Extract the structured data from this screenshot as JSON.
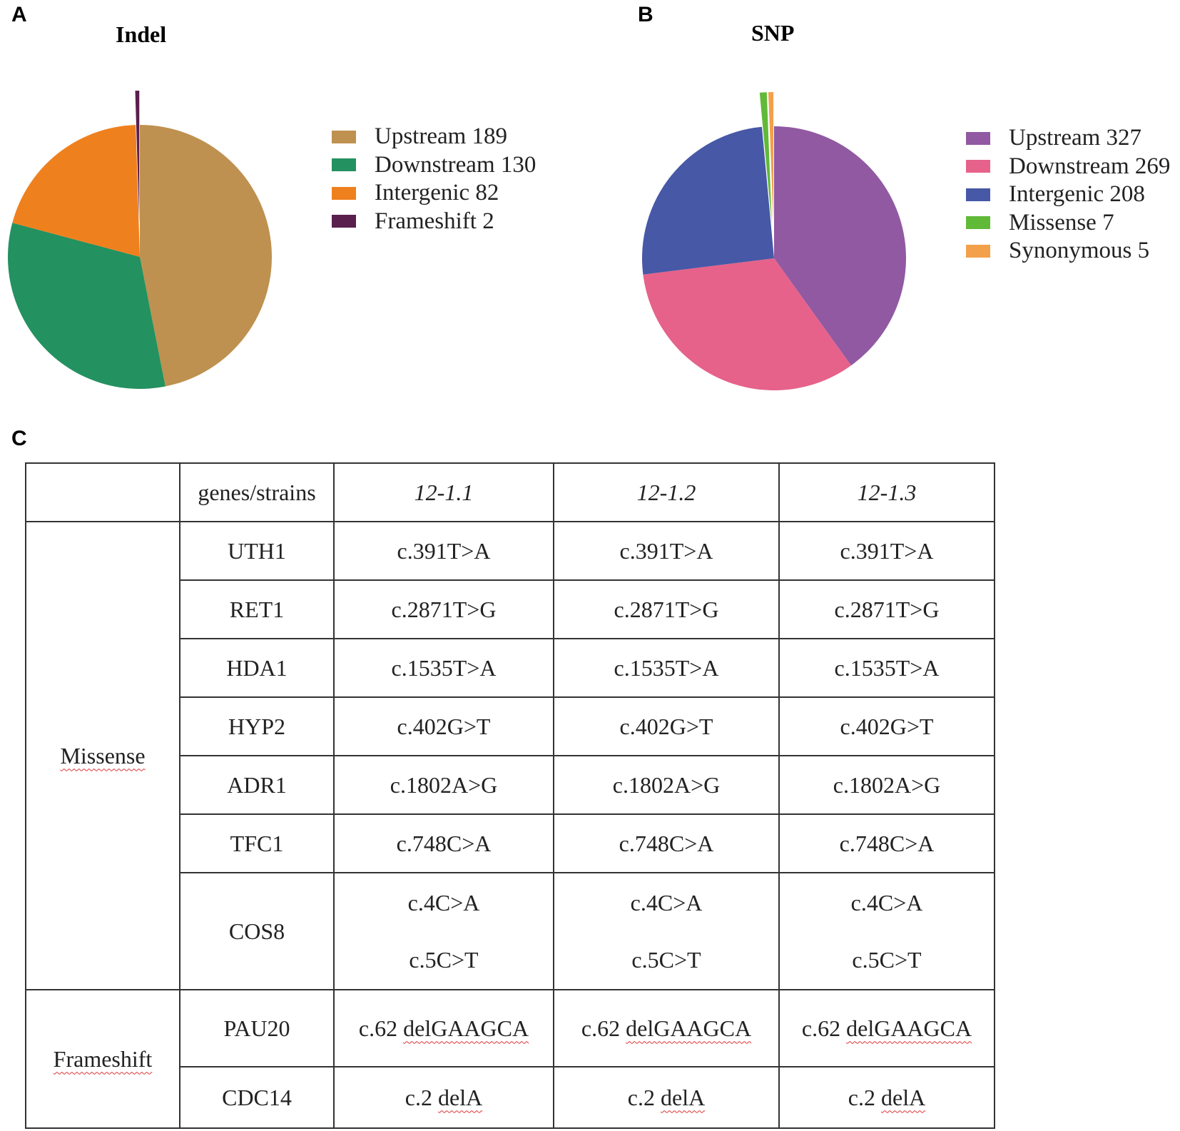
{
  "panels": {
    "a": "A",
    "b": "B",
    "c": "C"
  },
  "chart_data": [
    {
      "type": "pie",
      "title": "Indel",
      "slices": [
        {
          "label": "Upstream",
          "value": 189,
          "legend": "Upstream 189",
          "color": "#be9150"
        },
        {
          "label": "Downstream",
          "value": 130,
          "legend": "Downstream 130",
          "color": "#239160"
        },
        {
          "label": "Intergenic",
          "value": 82,
          "legend": "Intergenic 82",
          "color": "#ef801e"
        },
        {
          "label": "Frameshift",
          "value": 2,
          "legend": "Frameshift 2",
          "color": "#5a1f4d"
        }
      ],
      "legend_position": "right"
    },
    {
      "type": "pie",
      "title": "SNP",
      "slices": [
        {
          "label": "Upstream",
          "value": 327,
          "legend": "Upstream 327",
          "color": "#9159a2"
        },
        {
          "label": "Downstream",
          "value": 269,
          "legend": "Downstream 269",
          "color": "#e6628a"
        },
        {
          "label": "Intergenic",
          "value": 208,
          "legend": "Intergenic 208",
          "color": "#4658a6"
        },
        {
          "label": "Missense",
          "value": 7,
          "legend": "Missense 7",
          "color": "#61b938"
        },
        {
          "label": "Synonymous",
          "value": 5,
          "legend": "Synonymous 5",
          "color": "#f3a04a"
        }
      ],
      "legend_position": "right"
    },
    {
      "type": "table",
      "header": [
        "",
        "genes/strains",
        "12-1.1",
        "12-1.2",
        "12-1.3"
      ],
      "groups": [
        {
          "category": "Missense",
          "rows": [
            {
              "gene": "UTH1",
              "values": [
                "c.391T>A",
                "c.391T>A",
                "c.391T>A"
              ]
            },
            {
              "gene": "RET1",
              "values": [
                "c.2871T>G",
                "c.2871T>G",
                "c.2871T>G"
              ]
            },
            {
              "gene": "HDA1",
              "values": [
                "c.1535T>A",
                "c.1535T>A",
                "c.1535T>A"
              ]
            },
            {
              "gene": "HYP2",
              "values": [
                "c.402G>T",
                "c.402G>T",
                "c.402G>T"
              ]
            },
            {
              "gene": "ADR1",
              "values": [
                "c.1802A>G",
                "c.1802A>G",
                "c.1802A>G"
              ]
            },
            {
              "gene": "TFC1",
              "values": [
                "c.748C>A",
                "c.748C>A",
                "c.748C>A"
              ]
            },
            {
              "gene": "COS8",
              "values": [
                [
                  "c.4C>A",
                  "c.5C>T"
                ],
                [
                  "c.4C>A",
                  "c.5C>T"
                ],
                [
                  "c.4C>A",
                  "c.5C>T"
                ]
              ]
            }
          ]
        },
        {
          "category": "Frameshift",
          "rows": [
            {
              "gene": "PAU20",
              "values": [
                "c.62 delGAAGCA",
                "c.62 delGAAGCA",
                "c.62 delGAAGCA"
              ]
            },
            {
              "gene": "CDC14",
              "values": [
                "c.2 delA",
                "c.2 delA",
                "c.2 delA"
              ]
            }
          ]
        }
      ]
    }
  ]
}
